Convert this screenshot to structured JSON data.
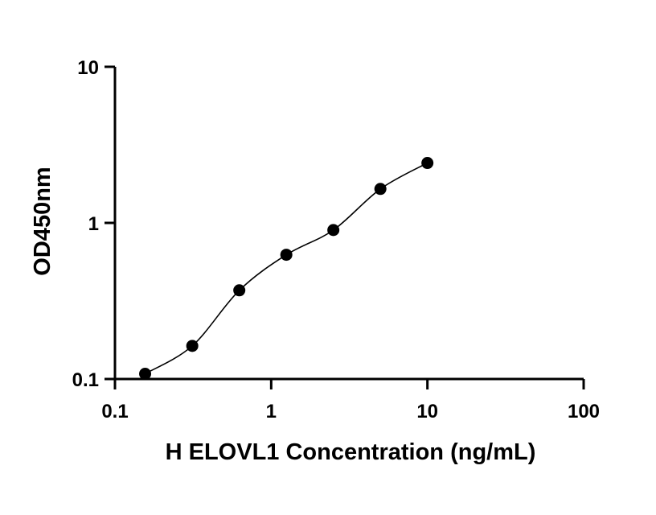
{
  "chart_data": {
    "type": "scatter",
    "title": "",
    "xlabel": "H ELOVL1 Concentration (ng/mL)",
    "ylabel": "OD450nm",
    "x_scale": "log",
    "y_scale": "log",
    "xlim": [
      0.1,
      100
    ],
    "ylim": [
      0.1,
      10
    ],
    "x_ticks": [
      0.1,
      1,
      10,
      100
    ],
    "x_tick_labels": [
      "0.1",
      "1",
      "10",
      "100"
    ],
    "y_ticks": [
      0.1,
      1,
      10
    ],
    "y_tick_labels": [
      "0.1",
      "1",
      "10"
    ],
    "grid": false,
    "legend": "none",
    "series": [
      {
        "x": [
          0.156,
          0.3125,
          0.625,
          1.25,
          2.5,
          5,
          10
        ],
        "y": [
          0.108,
          0.163,
          0.37,
          0.625,
          0.9,
          1.65,
          2.42
        ],
        "color": "#000000",
        "marker": "circle",
        "fit_curve": true
      }
    ]
  }
}
